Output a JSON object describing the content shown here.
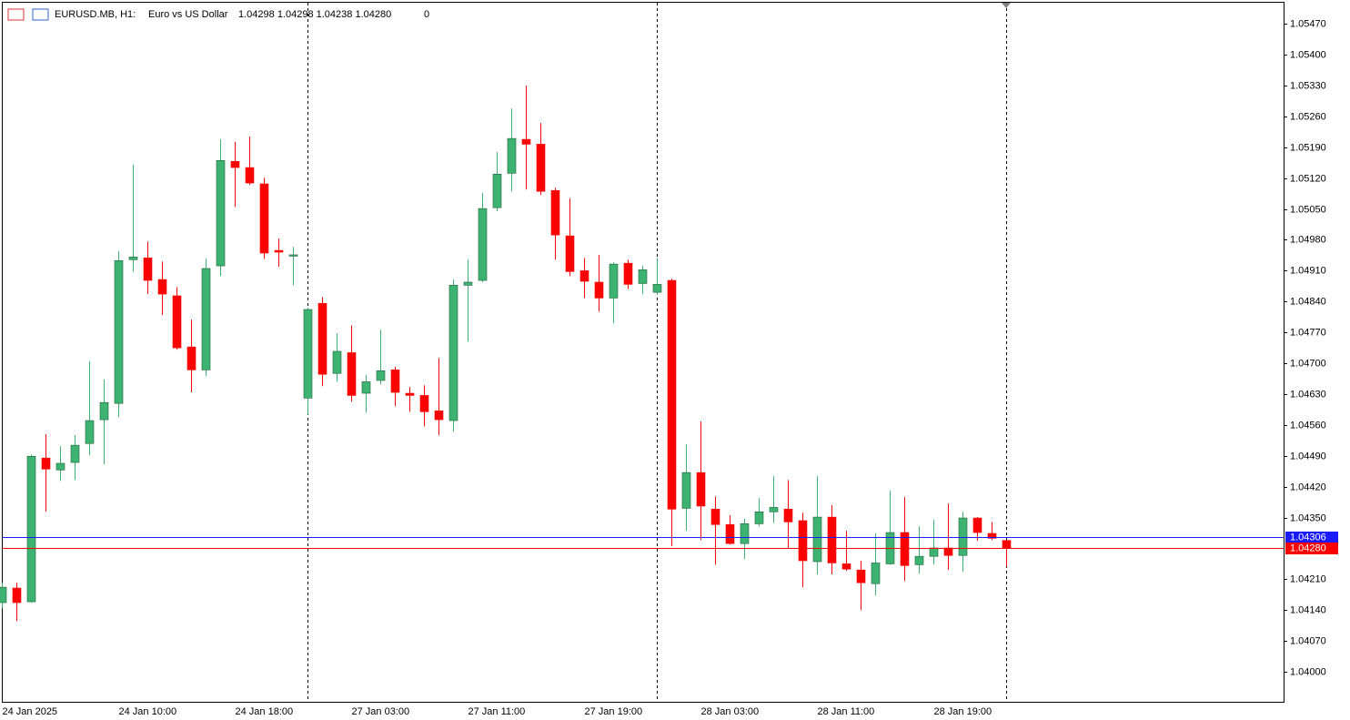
{
  "chart_data": {
    "type": "candlestick",
    "header": {
      "symbol": "EURUSD.MB, H1:",
      "description": "Euro vs US Dollar",
      "ohlc": "1.04298 1.04298 1.04238 1.04280",
      "volume": "0"
    },
    "categories": [
      "24 Jan 2025",
      null,
      null,
      null,
      null,
      null,
      null,
      null,
      "24 Jan 10:00",
      null,
      null,
      null,
      null,
      null,
      null,
      null,
      "24 Jan 18:00",
      null,
      null,
      null,
      null,
      null,
      null,
      null,
      "27 Jan 03:00",
      null,
      null,
      null,
      null,
      null,
      null,
      null,
      "27 Jan 11:00",
      null,
      null,
      null,
      null,
      null,
      null,
      null,
      "27 Jan 19:00",
      null,
      null,
      null,
      null,
      null,
      null,
      null,
      "28 Jan 03:00",
      null,
      null,
      null,
      null,
      null,
      null,
      null,
      "28 Jan 11:00",
      null,
      null,
      null,
      null,
      null,
      null,
      null,
      "28 Jan 19:00",
      null,
      null,
      null,
      null,
      null
    ],
    "open": [
      1.04157,
      1.0419,
      1.04159,
      1.04485,
      1.04458,
      1.04475,
      1.04518,
      1.04572,
      1.04609,
      1.04935,
      1.04939,
      1.0489,
      1.04853,
      1.04737,
      1.04685,
      1.04921,
      1.05158,
      1.05144,
      1.05107,
      1.04956,
      1.04943,
      1.04621,
      1.04836,
      1.04677,
      1.04724,
      1.04632,
      1.04661,
      1.04685,
      1.04632,
      1.04627,
      1.04592,
      1.0457,
      1.04877,
      1.04888,
      1.05053,
      1.05131,
      1.05208,
      1.05197,
      1.05092,
      1.04989,
      1.0491,
      1.04884,
      1.04848,
      1.04927,
      1.04881,
      1.04861,
      1.04888,
      1.04371,
      1.04452,
      1.04369,
      1.04334,
      1.04291,
      1.04336,
      1.04363,
      1.04369,
      1.04343,
      1.0425,
      1.04351,
      1.04245,
      1.04231,
      1.042,
      1.04245,
      1.04316,
      1.04243,
      1.04262,
      1.04281,
      1.04264,
      1.04349,
      1.04314,
      1.04298
    ],
    "high": [
      1.04202,
      1.04202,
      1.04493,
      1.04539,
      1.04512,
      1.04537,
      1.04704,
      1.04663,
      1.04954,
      1.0515,
      1.04976,
      1.04931,
      1.04873,
      1.04799,
      1.04937,
      1.05208,
      1.05202,
      1.05214,
      1.05121,
      1.04983,
      1.04964,
      1.04826,
      1.0485,
      1.04768,
      1.04786,
      1.04673,
      1.04776,
      1.04692,
      1.04646,
      1.0465,
      1.04712,
      1.0489,
      1.04935,
      1.05086,
      1.05179,
      1.05278,
      1.0533,
      1.05245,
      1.05098,
      1.05074,
      1.04939,
      1.04946,
      1.04929,
      1.04935,
      1.04921,
      1.04939,
      1.04892,
      1.04516,
      1.04568,
      1.04398,
      1.04355,
      1.04347,
      1.04394,
      1.04444,
      1.04435,
      1.04361,
      1.04444,
      1.04378,
      1.0432,
      1.04252,
      1.04314,
      1.04411,
      1.04396,
      1.0433,
      1.04345,
      1.04382,
      1.04363,
      1.04351,
      1.0434,
      1.04298
    ],
    "low": [
      1.04144,
      1.04115,
      1.04157,
      1.04363,
      1.04433,
      1.04435,
      1.04491,
      1.04471,
      1.04578,
      1.04908,
      1.04857,
      1.04809,
      1.04731,
      1.04634,
      1.04671,
      1.04898,
      1.05055,
      1.05105,
      1.04937,
      1.04919,
      1.04877,
      1.04584,
      1.04648,
      1.04658,
      1.04613,
      1.04588,
      1.04652,
      1.04603,
      1.0459,
      1.04557,
      1.04537,
      1.04545,
      1.04749,
      1.04884,
      1.05045,
      1.0509,
      1.05094,
      1.05082,
      1.04935,
      1.04898,
      1.04848,
      1.04817,
      1.04791,
      1.04869,
      1.04857,
      1.04855,
      1.04285,
      1.0432,
      1.04299,
      1.04243,
      1.04289,
      1.04256,
      1.0433,
      1.04338,
      1.04279,
      1.04192,
      1.04221,
      1.04221,
      1.04229,
      1.0414,
      1.04173,
      1.04243,
      1.04206,
      1.04223,
      1.04243,
      1.04231,
      1.04227,
      1.04297,
      1.04299,
      1.04238
    ],
    "close": [
      1.04192,
      1.04157,
      1.04489,
      1.0446,
      1.04473,
      1.04514,
      1.0457,
      1.04611,
      1.04933,
      1.04941,
      1.04888,
      1.04857,
      1.04735,
      1.04685,
      1.04915,
      1.0516,
      1.05144,
      1.05109,
      1.0495,
      1.04952,
      1.04946,
      1.04822,
      1.04675,
      1.04727,
      1.04627,
      1.04658,
      1.04683,
      1.04634,
      1.04627,
      1.0459,
      1.04572,
      1.04877,
      1.04884,
      1.05051,
      1.05129,
      1.0521,
      1.05197,
      1.0509,
      1.04991,
      1.04908,
      1.04886,
      1.04848,
      1.04925,
      1.04879,
      1.04912,
      1.04879,
      1.04369,
      1.04452,
      1.04376,
      1.04334,
      1.04291,
      1.04336,
      1.04363,
      1.04373,
      1.0434,
      1.04252,
      1.04351,
      1.04247,
      1.04233,
      1.04202,
      1.04247,
      1.04316,
      1.04241,
      1.04262,
      1.04281,
      1.04264,
      1.04349,
      1.04316,
      1.04303,
      1.0428
    ],
    "up_color": "#3cb371",
    "down_color": "#ff0000",
    "ylim": [
      1.03932,
      1.0552
    ],
    "yticks": [
      {
        "value": 1.0547,
        "label": "1.05470"
      },
      {
        "value": 1.054,
        "label": "1.05400"
      },
      {
        "value": 1.0533,
        "label": "1.05330"
      },
      {
        "value": 1.0526,
        "label": "1.05260"
      },
      {
        "value": 1.0519,
        "label": "1.05190"
      },
      {
        "value": 1.0512,
        "label": "1.05120"
      },
      {
        "value": 1.0505,
        "label": "1.05050"
      },
      {
        "value": 1.0498,
        "label": "1.04980"
      },
      {
        "value": 1.0491,
        "label": "1.04910"
      },
      {
        "value": 1.0484,
        "label": "1.04840"
      },
      {
        "value": 1.0477,
        "label": "1.04770"
      },
      {
        "value": 1.047,
        "label": "1.04700"
      },
      {
        "value": 1.0463,
        "label": "1.04630"
      },
      {
        "value": 1.0456,
        "label": "1.04560"
      },
      {
        "value": 1.0449,
        "label": "1.04490"
      },
      {
        "value": 1.0442,
        "label": "1.04420"
      },
      {
        "value": 1.0435,
        "label": "1.04350"
      },
      {
        "value": 1.0421,
        "label": "1.04210"
      },
      {
        "value": 1.0414,
        "label": "1.04140"
      },
      {
        "value": 1.0407,
        "label": "1.04070"
      },
      {
        "value": 1.04,
        "label": "1.04000"
      }
    ],
    "ask_line": {
      "value": 1.04306,
      "label": "1.04306",
      "color": "#1a1aff"
    },
    "bid_line": {
      "value": 1.0428,
      "label": "1.04280",
      "color": "#ff0000"
    }
  }
}
